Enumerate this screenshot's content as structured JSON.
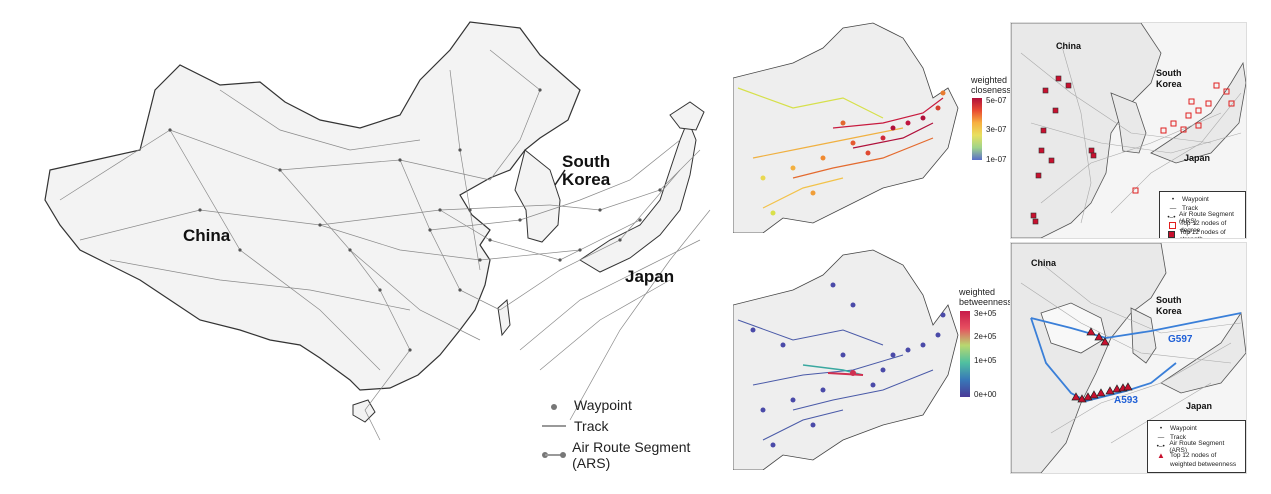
{
  "main_map": {
    "labels": {
      "china": "China",
      "south": "South",
      "korea": "Korea",
      "japan": "Japan"
    },
    "legend": {
      "waypoint": "Waypoint",
      "track": "Track",
      "ars": "Air Route Segment (ARS)"
    }
  },
  "closeness_map": {
    "colorbar_title_1": "weighted",
    "colorbar_title_2": "closeness",
    "ticks": [
      "5e-07",
      "3e-07",
      "1e-07"
    ]
  },
  "betweenness_map": {
    "colorbar_title_1": "weighted",
    "colorbar_title_2": "betweenness",
    "ticks": [
      "3e+05",
      "2e+05",
      "1e+05",
      "0e+00"
    ]
  },
  "degree_map": {
    "labels": {
      "china": "China",
      "south": "South",
      "korea": "Korea",
      "japan": "Japan"
    },
    "legend": {
      "waypoint": "Waypoint",
      "track": "Track",
      "ars": "Air Route Segment (ARS)",
      "degree": "Top 12 nodes of degree",
      "strength": "Top 12 nodes of strength"
    }
  },
  "betweenness_route_map": {
    "labels": {
      "china": "China",
      "south": "South",
      "korea": "Korea",
      "japan": "Japan",
      "route_g597": "G597",
      "route_a593": "A593"
    },
    "legend": {
      "waypoint": "Waypoint",
      "track": "Track",
      "ars": "Air Route Segment (ARS)",
      "top_1": "Top 12 nodes of",
      "top_2": "weighted betweenness"
    }
  }
}
